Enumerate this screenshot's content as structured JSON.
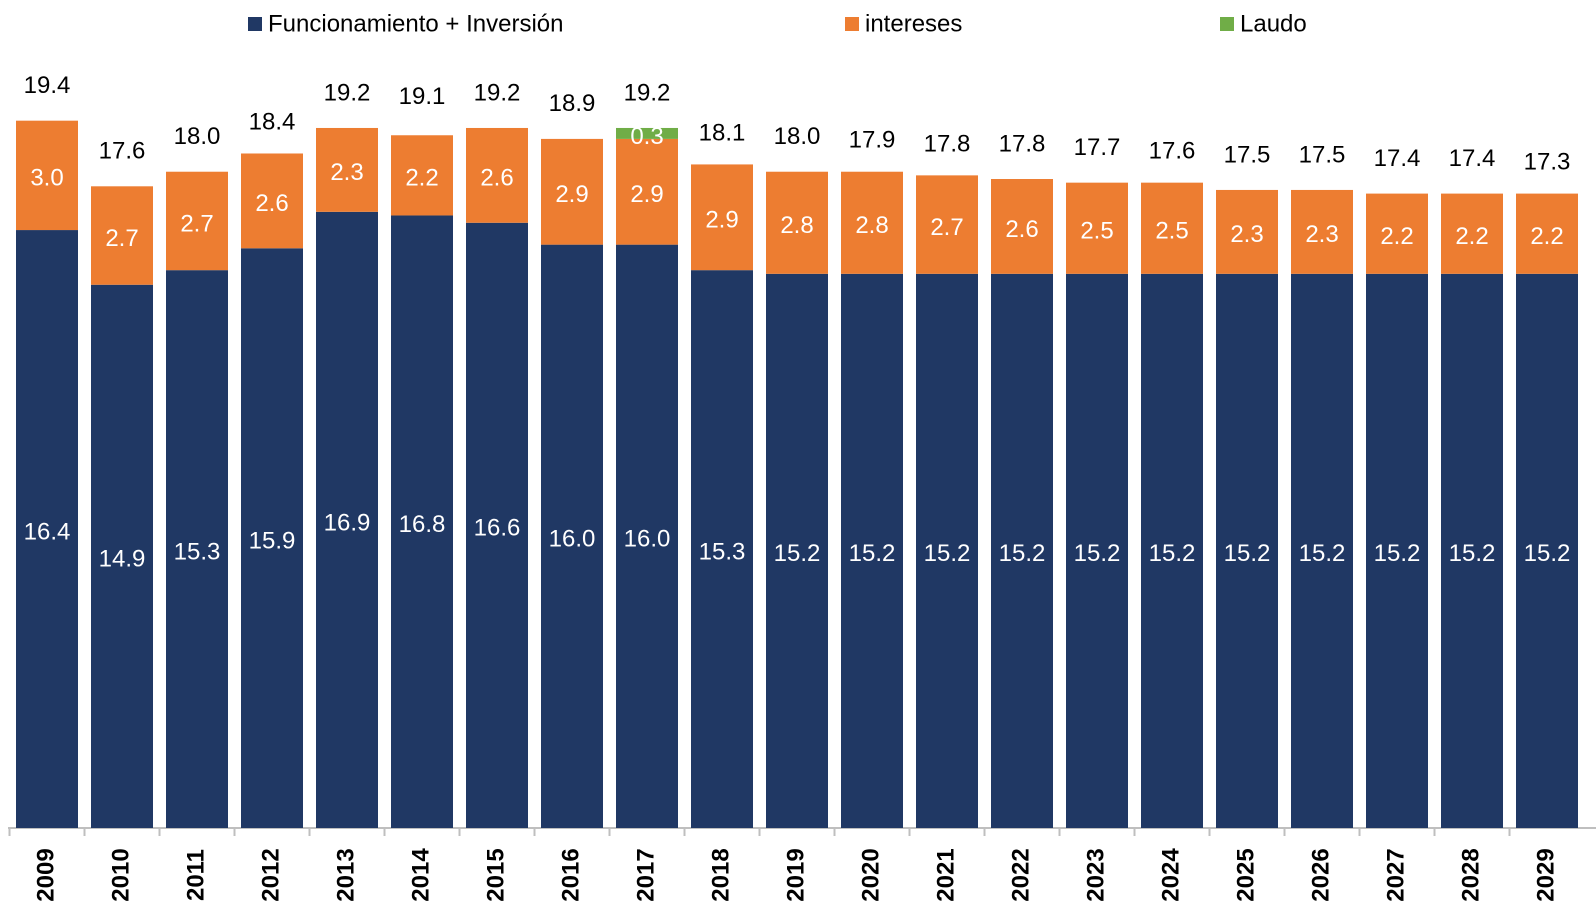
{
  "chart_data": {
    "type": "stacked_bar",
    "categories": [
      "2009",
      "2010",
      "2011",
      "2012",
      "2013",
      "2014",
      "2015",
      "2016",
      "2017",
      "2018",
      "2019",
      "2020",
      "2021",
      "2022",
      "2023",
      "2024",
      "2025",
      "2026",
      "2027",
      "2028",
      "2029"
    ],
    "series": [
      {
        "name": "Funcionamiento + Inversión",
        "color": "#203864",
        "values": [
          16.4,
          14.9,
          15.3,
          15.9,
          16.9,
          16.8,
          16.6,
          16.0,
          16.0,
          15.3,
          15.2,
          15.2,
          15.2,
          15.2,
          15.2,
          15.2,
          15.2,
          15.2,
          15.2,
          15.2,
          15.2
        ],
        "value_labels": [
          "16.4",
          "14.9",
          "15.3",
          "15.9",
          "16.9",
          "16.8",
          "16.6",
          "16.0",
          "16.0",
          "15.3",
          "15.2",
          "15.2",
          "15.2",
          "15.2",
          "15.2",
          "15.2",
          "15.2",
          "15.2",
          "15.2",
          "15.2",
          "15.2"
        ]
      },
      {
        "name": "intereses",
        "color": "#ed7d31",
        "values": [
          3.0,
          2.7,
          2.7,
          2.6,
          2.3,
          2.2,
          2.6,
          2.9,
          2.9,
          2.9,
          2.8,
          2.8,
          2.7,
          2.6,
          2.5,
          2.5,
          2.3,
          2.3,
          2.2,
          2.2,
          2.2
        ],
        "value_labels": [
          "3.0",
          "2.7",
          "2.7",
          "2.6",
          "2.3",
          "2.2",
          "2.6",
          "2.9",
          "2.9",
          "2.9",
          "2.8",
          "2.8",
          "2.7",
          "2.6",
          "2.5",
          "2.5",
          "2.3",
          "2.3",
          "2.2",
          "2.2",
          "2.2"
        ]
      },
      {
        "name": "Laudo",
        "color": "#70ad47",
        "values": [
          null,
          null,
          null,
          null,
          null,
          null,
          null,
          null,
          0.3,
          null,
          null,
          null,
          null,
          null,
          null,
          null,
          null,
          null,
          null,
          null,
          null
        ],
        "value_labels": [
          null,
          null,
          null,
          null,
          null,
          null,
          null,
          null,
          "0.3",
          null,
          null,
          null,
          null,
          null,
          null,
          null,
          null,
          null,
          null,
          null,
          null
        ]
      }
    ],
    "totals": [
      19.4,
      17.6,
      18.0,
      18.4,
      19.2,
      19.1,
      19.2,
      18.9,
      19.2,
      18.1,
      18.0,
      17.9,
      17.8,
      17.8,
      17.7,
      17.6,
      17.5,
      17.5,
      17.4,
      17.4,
      17.3
    ],
    "total_labels": [
      "19.4",
      "17.6",
      "18.0",
      "18.4",
      "19.2",
      "19.1",
      "19.2",
      "18.9",
      "19.2",
      "18.1",
      "18.0",
      "17.9",
      "17.8",
      "17.8",
      "17.7",
      "17.6",
      "17.5",
      "17.5",
      "17.4",
      "17.4",
      "17.3"
    ]
  }
}
